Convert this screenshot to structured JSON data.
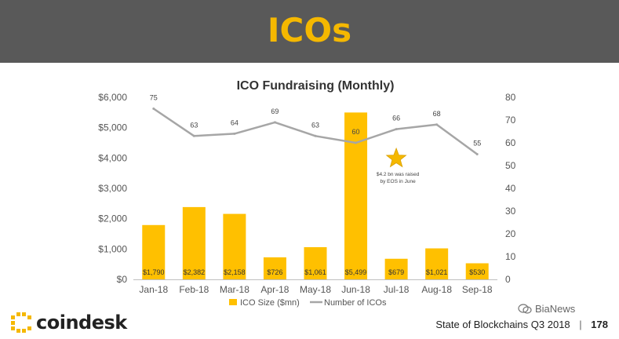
{
  "header": {
    "title": "ICOs"
  },
  "chart_data": {
    "type": "bar",
    "title": "ICO Fundraising (Monthly)",
    "categories": [
      "Jan-18",
      "Feb-18",
      "Mar-18",
      "Apr-18",
      "May-18",
      "Jun-18",
      "Jul-18",
      "Aug-18",
      "Sep-18"
    ],
    "series": [
      {
        "name": "ICO Size ($mn)",
        "type": "bar",
        "axis": "left",
        "color": "#FFC000",
        "values": [
          1790,
          2382,
          2158,
          726,
          1061,
          5499,
          679,
          1021,
          530
        ],
        "labels": [
          "$1,790",
          "$2,382",
          "$2,158",
          "$726",
          "$1,061",
          "$5,499",
          "$679",
          "$1,021",
          "$530"
        ]
      },
      {
        "name": "Number of ICOs",
        "type": "line",
        "axis": "right",
        "color": "#A6A6A6",
        "values": [
          75,
          63,
          64,
          69,
          63,
          60,
          66,
          68,
          55
        ],
        "labels": [
          "75",
          "63",
          "64",
          "69",
          "63",
          "60",
          "66",
          "68",
          "55"
        ]
      }
    ],
    "y_left": {
      "ylim": [
        0,
        6000
      ],
      "ticks": [
        "$0",
        "$1,000",
        "$2,000",
        "$3,000",
        "$4,000",
        "$5,000",
        "$6,000"
      ]
    },
    "y_right": {
      "ylim": [
        0,
        80
      ],
      "ticks": [
        "0",
        "10",
        "20",
        "30",
        "40",
        "50",
        "60",
        "70",
        "80"
      ]
    },
    "annotation": {
      "text_lines": [
        "$4.2 bn was raised",
        "by EOS in June"
      ],
      "icon": "star-icon",
      "color": "#F5B800"
    },
    "legend_position": "bottom",
    "grid": false
  },
  "footer": {
    "logo_text": "coindesk",
    "report": "State of Blockchains Q3 2018",
    "separator": "|",
    "page": "178",
    "watermark": "BiaNews"
  }
}
